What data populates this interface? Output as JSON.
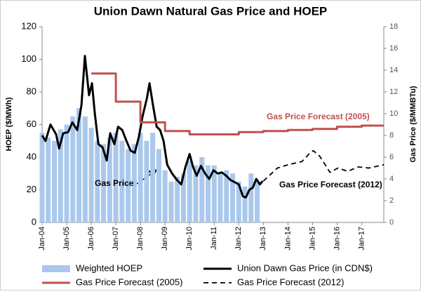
{
  "chart_data": {
    "type": "combo",
    "title": "Union Dawn Natural Gas Price and HOEP",
    "ylabel": "HOEP ($/MWh)",
    "y2label": "Gas Price ($/MMBTu)",
    "xlim": [
      2004,
      2017.9
    ],
    "xticks": [
      {
        "value": 2004,
        "label": "Jan-04"
      },
      {
        "value": 2005,
        "label": "Jan-05"
      },
      {
        "value": 2006,
        "label": "Jan-06"
      },
      {
        "value": 2007,
        "label": "Jan-07"
      },
      {
        "value": 2008,
        "label": "Jan-08"
      },
      {
        "value": 2009,
        "label": "Jan-09"
      },
      {
        "value": 2010,
        "label": "Jan-10"
      },
      {
        "value": 2011,
        "label": "Jan-11"
      },
      {
        "value": 2012,
        "label": "Jan-12"
      },
      {
        "value": 2013,
        "label": "Jan-13"
      },
      {
        "value": 2014,
        "label": "Jan-14"
      },
      {
        "value": 2015,
        "label": "Jan-15"
      },
      {
        "value": 2016,
        "label": "Jan-16"
      },
      {
        "value": 2017,
        "label": "Jan-17"
      }
    ],
    "ylim": [
      0,
      120
    ],
    "yticks": [
      0,
      20,
      40,
      60,
      80,
      100,
      120
    ],
    "y2lim": [
      0,
      18
    ],
    "y2ticks": [
      0,
      2,
      4,
      6,
      8,
      10,
      12,
      14,
      16,
      18
    ],
    "annotations": [
      "Gas Price Forecast (2005)",
      "Gas Price",
      "Gas Price Forecast (2012)"
    ],
    "series": [
      {
        "name": "Weighted HOEP",
        "type": "bar",
        "color": "#a9c8ec",
        "x": [
          2004,
          2004.25,
          2004.5,
          2004.75,
          2005,
          2005.25,
          2005.5,
          2005.75,
          2006,
          2006.25,
          2006.5,
          2006.75,
          2007,
          2007.25,
          2007.5,
          2007.75,
          2008,
          2008.25,
          2008.5,
          2008.75,
          2009,
          2009.25,
          2009.5,
          2009.75,
          2010,
          2010.25,
          2010.5,
          2010.75,
          2011,
          2011.25,
          2011.5,
          2011.75,
          2012,
          2012.25,
          2012.5,
          2012.75
        ],
        "values": [
          55,
          52,
          50,
          57,
          60,
          65,
          70,
          65,
          58,
          50,
          48,
          52,
          55,
          50,
          45,
          48,
          55,
          50,
          55,
          45,
          32,
          25,
          28,
          30,
          38,
          35,
          40,
          35,
          35,
          30,
          32,
          30,
          25,
          22,
          30,
          25
        ]
      },
      {
        "name": "Union Dawn Gas Price (in CDN$)",
        "type": "line",
        "axis": "y2",
        "color": "#000000",
        "x": [
          2004,
          2004.14,
          2004.34,
          2004.57,
          2004.69,
          2004.86,
          2005.06,
          2005.23,
          2005.43,
          2005.6,
          2005.74,
          2005.83,
          2005.91,
          2006.03,
          2006.14,
          2006.29,
          2006.46,
          2006.63,
          2006.77,
          2006.94,
          2007.09,
          2007.26,
          2007.43,
          2007.6,
          2007.77,
          2007.94,
          2008.09,
          2008.26,
          2008.37,
          2008.51,
          2008.66,
          2008.8,
          2008.94,
          2009.09,
          2009.29,
          2009.49,
          2009.66,
          2009.83,
          2010,
          2010.14,
          2010.29,
          2010.46,
          2010.63,
          2010.8,
          2010.97,
          2011.14,
          2011.31,
          2011.49,
          2011.66,
          2011.83,
          2012,
          2012.17,
          2012.29,
          2012.43,
          2012.57,
          2012.71,
          2012.86,
          2012.97
        ],
        "values": [
          8.0,
          7.5,
          9.0,
          8.1,
          6.8,
          8.2,
          8.3,
          9.2,
          8.5,
          10.8,
          15.3,
          13.4,
          11.7,
          12.8,
          10.1,
          7.2,
          6.9,
          5.7,
          8.2,
          7.2,
          8.8,
          8.5,
          7.5,
          6.6,
          6.4,
          7.9,
          9.8,
          11.4,
          12.8,
          10.8,
          8.8,
          8.5,
          7.5,
          5.3,
          4.5,
          3.9,
          3.5,
          5.1,
          6.3,
          5.1,
          4.3,
          5.2,
          4.5,
          4.0,
          4.8,
          4.5,
          4.6,
          4.3,
          3.9,
          3.7,
          3.5,
          2.4,
          2.3,
          3.0,
          3.2,
          4.0,
          3.5,
          3.8
        ]
      },
      {
        "name": "Gas Price Forecast (2005)",
        "type": "line",
        "axis": "y2",
        "color": "#c0504d",
        "x": [
          2006,
          2007,
          2007,
          2008,
          2008,
          2009,
          2009,
          2010,
          2010,
          2012,
          2012,
          2013,
          2013,
          2014,
          2014,
          2015,
          2015,
          2016,
          2016,
          2017,
          2017,
          2017.9
        ],
        "values": [
          13.7,
          13.7,
          11.1,
          11.1,
          9.2,
          9.2,
          8.4,
          8.4,
          8.1,
          8.1,
          8.3,
          8.3,
          8.4,
          8.4,
          8.5,
          8.5,
          8.6,
          8.6,
          8.8,
          8.8,
          8.9,
          8.9
        ]
      },
      {
        "name": "Gas Price Forecast (2012)",
        "type": "line",
        "axis": "y2",
        "color": "#000000",
        "dash": true,
        "x": [
          2013,
          2013.57,
          2014,
          2014.57,
          2014.86,
          2015.03,
          2015.29,
          2015.71,
          2016.03,
          2016.43,
          2016.86,
          2017.29,
          2017.9
        ],
        "values": [
          3.8,
          5.0,
          5.3,
          5.6,
          6.3,
          6.6,
          6.1,
          4.6,
          5.0,
          4.7,
          5.1,
          5.0,
          5.3
        ]
      }
    ]
  }
}
